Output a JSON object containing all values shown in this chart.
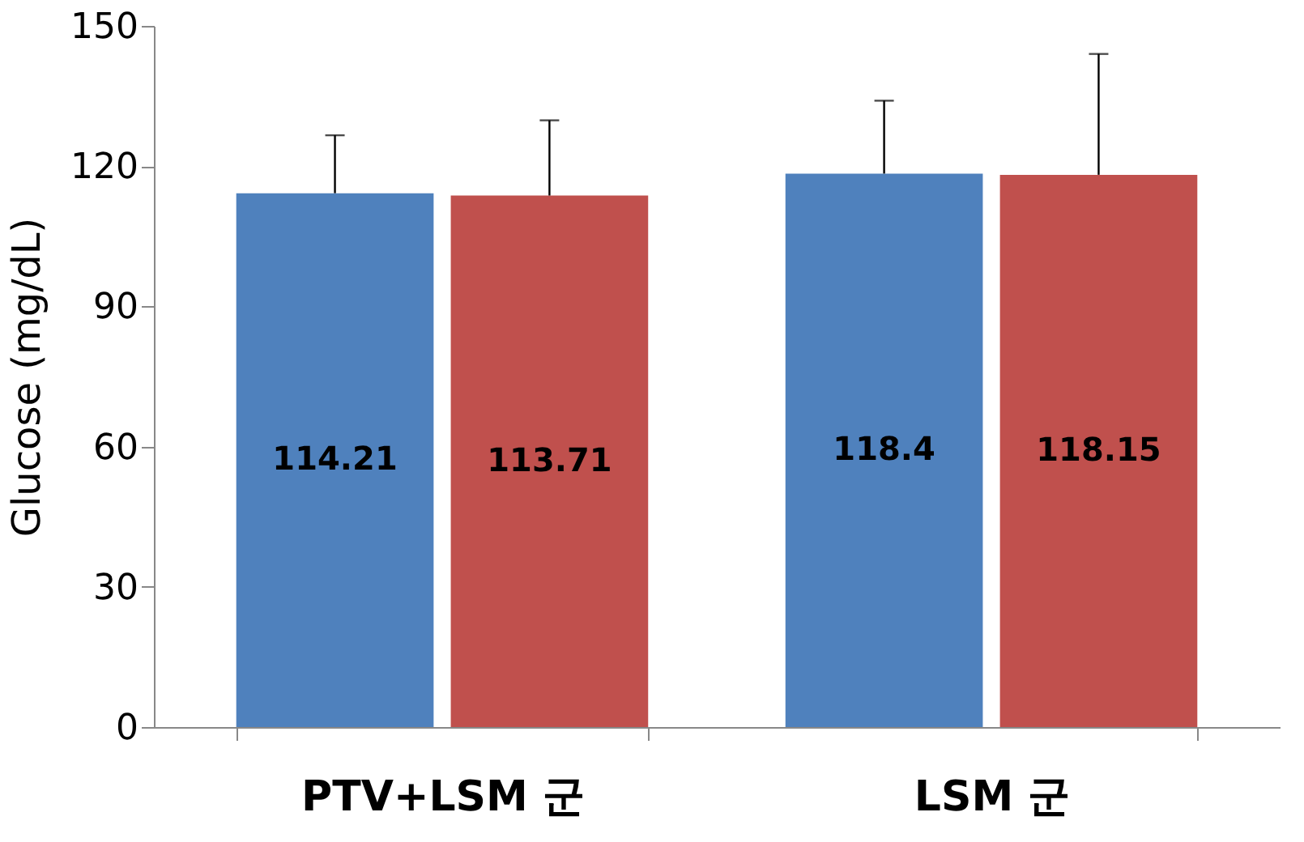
{
  "chart_data": {
    "type": "bar",
    "ylabel": "Glucose (mg/dL)",
    "categories": [
      "PTV+LSM 군",
      "LSM 군"
    ],
    "series": [
      {
        "color": "#4f81bd",
        "values": [
          114.21,
          118.4
        ],
        "errors": [
          [
            114.21,
            126.6
          ],
          [
            118.4,
            134
          ]
        ]
      },
      {
        "color": "#c0504d",
        "values": [
          113.71,
          118.15
        ],
        "errors": [
          [
            113.71,
            129.8
          ],
          [
            118.15,
            144
          ]
        ]
      }
    ],
    "ylim": [
      0,
      150
    ],
    "yticks": [
      0,
      30,
      60,
      90,
      120,
      150
    ],
    "grid": false,
    "data_labels": true
  }
}
